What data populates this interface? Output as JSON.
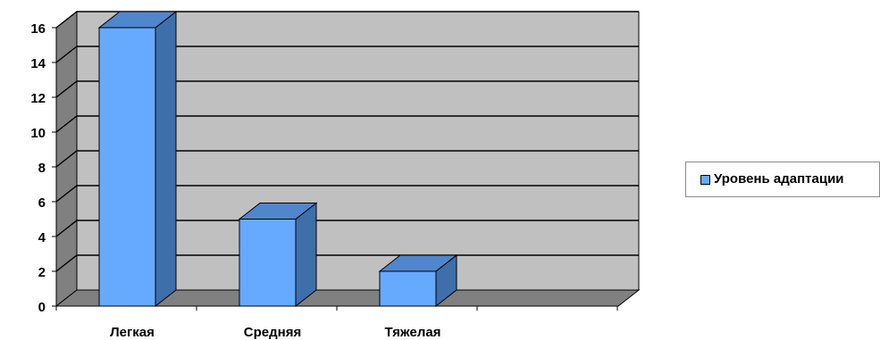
{
  "chart_data": {
    "type": "bar",
    "categories": [
      "Легкая",
      "Средняя",
      "Тяжелая"
    ],
    "series": [
      {
        "name": "Уровень адаптации",
        "values": [
          16,
          5,
          2
        ]
      }
    ],
    "ylim": [
      0,
      16
    ],
    "yticks": [
      "0",
      "2",
      "4",
      "6",
      "8",
      "10",
      "12",
      "14",
      "16"
    ],
    "grid": true,
    "legend_position": "right",
    "colors": {
      "bar_front": "#66aaff",
      "bar_side": "#3f6faa",
      "bar_top": "#4f86cc",
      "back_wall": "#c0c0c0",
      "side_wall": "#808080",
      "floor": "#808080",
      "grid": "#000000"
    }
  }
}
